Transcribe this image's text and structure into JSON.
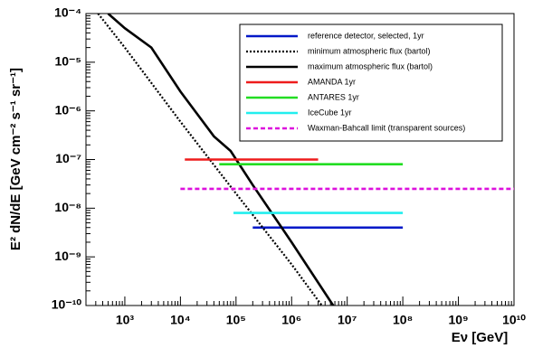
{
  "chart_data": {
    "type": "line",
    "x_label": "Eν [GeV]",
    "y_label": "E² dN/dE [GeV cm⁻² s⁻¹ sr⁻¹]",
    "xscale": "log",
    "yscale": "log",
    "xlim": [
      200,
      10000000000
    ],
    "ylim": [
      1e-10,
      0.0001
    ],
    "xticks": [
      {
        "value": 1000,
        "label": "10³"
      },
      {
        "value": 10000,
        "label": "10⁴"
      },
      {
        "value": 100000,
        "label": "10⁵"
      },
      {
        "value": 1000000,
        "label": "10⁶"
      },
      {
        "value": 10000000,
        "label": "10⁷"
      },
      {
        "value": 100000000,
        "label": "10⁸"
      },
      {
        "value": 1000000000,
        "label": "10⁹"
      },
      {
        "value": 10000000000,
        "label": "10¹⁰"
      }
    ],
    "yticks": [
      {
        "value": 1e-10,
        "label": "10⁻¹⁰"
      },
      {
        "value": 1e-09,
        "label": "10⁻⁹"
      },
      {
        "value": 1e-08,
        "label": "10⁻⁸"
      },
      {
        "value": 1e-07,
        "label": "10⁻⁷"
      },
      {
        "value": 1e-06,
        "label": "10⁻⁶"
      },
      {
        "value": 1e-05,
        "label": "10⁻⁵"
      },
      {
        "value": 0.0001,
        "label": "10⁻⁴"
      }
    ],
    "grid": false,
    "legend": "upper right",
    "series": [
      {
        "name": "reference detector, selected, 1yr",
        "color": "#0018c8",
        "style": "solid",
        "x": [
          200000,
          100000000
        ],
        "values": [
          4e-09,
          4e-09
        ]
      },
      {
        "name": "minimum atmospheric flux (bartol)",
        "color": "#000000",
        "style": "dotted",
        "x": [
          330,
          1000,
          10000,
          100000,
          1000000,
          3500000
        ],
        "values": [
          0.0001,
          2e-05,
          6e-07,
          2e-08,
          7e-10,
          1e-10
        ]
      },
      {
        "name": "maximum atmospheric flux (bartol)",
        "color": "#000000",
        "style": "solid",
        "x": [
          500,
          1000,
          3000,
          10000,
          40000,
          80000,
          200000,
          1000000,
          5600000
        ],
        "values": [
          0.0001,
          5e-05,
          2e-05,
          2.5e-06,
          3e-07,
          1.5e-07,
          3e-08,
          2e-09,
          1e-10
        ]
      },
      {
        "name": "AMANDA 1yr",
        "color": "#ee1c1c",
        "style": "solid",
        "x": [
          12000,
          3000000
        ],
        "values": [
          1e-07,
          1e-07
        ]
      },
      {
        "name": "ANTARES 1yr",
        "color": "#22dd22",
        "style": "solid",
        "x": [
          50000,
          100000000
        ],
        "values": [
          8e-08,
          8e-08
        ]
      },
      {
        "name": "IceCube 1yr",
        "color": "#22eeee",
        "style": "solid",
        "x": [
          90000,
          100000000
        ],
        "values": [
          8e-09,
          8e-09
        ]
      },
      {
        "name": "Waxman-Bahcall limit (transparent sources)",
        "color": "#dd11dd",
        "style": "dashed",
        "x": [
          10000,
          10000000000
        ],
        "values": [
          2.5e-08,
          2.5e-08
        ]
      }
    ]
  }
}
